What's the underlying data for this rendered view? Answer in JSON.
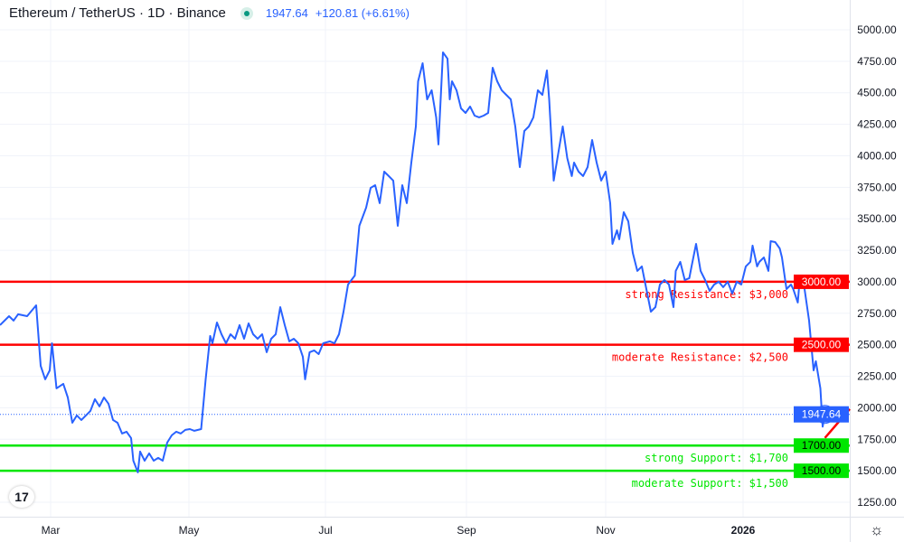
{
  "header": {
    "symbol": "Ethereum / TetherUS · 1D · Binance",
    "price": "1947.64",
    "change": "+120.81 (+6.61%)",
    "status_color": "#089981"
  },
  "logo": "TV",
  "chart_data": {
    "type": "line",
    "title": "Ethereum / TetherUS · 1D · Binance",
    "x_unit": "day index",
    "xlim": [
      0,
      376
    ],
    "ylim": [
      1125,
      5125
    ],
    "y_ticks": [
      1250,
      1500,
      1750,
      2000,
      2250,
      2500,
      2750,
      3000,
      3250,
      3500,
      3750,
      4000,
      4250,
      4500,
      4750,
      5000
    ],
    "y_tick_labels": [
      "1250.00",
      "1500.00",
      "1750.00",
      "2000.00",
      "2250.00",
      "2500.00",
      "2750.00",
      "3000.00",
      "3250.00",
      "3500.00",
      "3750.00",
      "4000.00",
      "4250.00",
      "4500.00",
      "4750.00",
      "5000.00"
    ],
    "x_ticks": [
      {
        "day": 22.4,
        "label": "Mar"
      },
      {
        "day": 83.6,
        "label": "May"
      },
      {
        "day": 144,
        "label": "Jul"
      },
      {
        "day": 206.4,
        "label": "Sep"
      },
      {
        "day": 268,
        "label": "Nov"
      },
      {
        "day": 328.8,
        "label": "2026",
        "bold": true
      }
    ],
    "grid": true,
    "series": [
      {
        "name": "ETHUSDT",
        "color": "#2962ff",
        "points": [
          [
            0,
            2656
          ],
          [
            4,
            2727
          ],
          [
            6,
            2692
          ],
          [
            8,
            2742
          ],
          [
            12,
            2727
          ],
          [
            16,
            2813
          ],
          [
            18,
            2333
          ],
          [
            20,
            2226
          ],
          [
            22,
            2297
          ],
          [
            23,
            2512
          ],
          [
            25,
            2154
          ],
          [
            28,
            2190
          ],
          [
            30,
            2082
          ],
          [
            32,
            1881
          ],
          [
            34,
            1939
          ],
          [
            36,
            1903
          ],
          [
            38,
            1939
          ],
          [
            40,
            1975
          ],
          [
            42,
            2068
          ],
          [
            44,
            2011
          ],
          [
            46,
            2082
          ],
          [
            48,
            2032
          ],
          [
            50,
            1903
          ],
          [
            52,
            1881
          ],
          [
            54,
            1796
          ],
          [
            56,
            1810
          ],
          [
            58,
            1760
          ],
          [
            59,
            1580
          ],
          [
            61,
            1487
          ],
          [
            62,
            1652
          ],
          [
            64,
            1580
          ],
          [
            66,
            1638
          ],
          [
            68,
            1580
          ],
          [
            70,
            1602
          ],
          [
            72,
            1580
          ],
          [
            74,
            1724
          ],
          [
            76,
            1781
          ],
          [
            78,
            1810
          ],
          [
            80,
            1796
          ],
          [
            82,
            1824
          ],
          [
            84,
            1831
          ],
          [
            86,
            1817
          ],
          [
            89,
            1831
          ],
          [
            91,
            2226
          ],
          [
            93,
            2570
          ],
          [
            94,
            2512
          ],
          [
            96,
            2677
          ],
          [
            98,
            2584
          ],
          [
            100,
            2512
          ],
          [
            102,
            2584
          ],
          [
            104,
            2548
          ],
          [
            106,
            2656
          ],
          [
            108,
            2548
          ],
          [
            110,
            2670
          ],
          [
            112,
            2584
          ],
          [
            114,
            2548
          ],
          [
            116,
            2584
          ],
          [
            118,
            2441
          ],
          [
            120,
            2548
          ],
          [
            122,
            2584
          ],
          [
            124,
            2799
          ],
          [
            126,
            2656
          ],
          [
            128,
            2527
          ],
          [
            130,
            2548
          ],
          [
            132,
            2512
          ],
          [
            134,
            2405
          ],
          [
            135,
            2226
          ],
          [
            137,
            2441
          ],
          [
            139,
            2455
          ],
          [
            141,
            2426
          ],
          [
            143,
            2512
          ],
          [
            146,
            2527
          ],
          [
            148,
            2512
          ],
          [
            150,
            2584
          ],
          [
            152,
            2763
          ],
          [
            154,
            2978
          ],
          [
            157,
            3050
          ],
          [
            159,
            3444
          ],
          [
            162,
            3588
          ],
          [
            164,
            3745
          ],
          [
            166,
            3767
          ],
          [
            168,
            3624
          ],
          [
            170,
            3874
          ],
          [
            172,
            3839
          ],
          [
            174,
            3803
          ],
          [
            176,
            3444
          ],
          [
            178,
            3767
          ],
          [
            180,
            3624
          ],
          [
            182,
            3946
          ],
          [
            184,
            4233
          ],
          [
            185,
            4591
          ],
          [
            187,
            4735
          ],
          [
            189,
            4448
          ],
          [
            191,
            4520
          ],
          [
            193,
            4305
          ],
          [
            194,
            4090
          ],
          [
            196,
            4821
          ],
          [
            198,
            4771
          ],
          [
            199,
            4448
          ],
          [
            200,
            4591
          ],
          [
            202,
            4520
          ],
          [
            204,
            4376
          ],
          [
            206,
            4340
          ],
          [
            208,
            4391
          ],
          [
            210,
            4319
          ],
          [
            212,
            4305
          ],
          [
            214,
            4319
          ],
          [
            216,
            4340
          ],
          [
            218,
            4699
          ],
          [
            220,
            4591
          ],
          [
            222,
            4520
          ],
          [
            224,
            4484
          ],
          [
            226,
            4448
          ],
          [
            228,
            4233
          ],
          [
            230,
            3910
          ],
          [
            232,
            4197
          ],
          [
            234,
            4233
          ],
          [
            236,
            4305
          ],
          [
            238,
            4520
          ],
          [
            240,
            4484
          ],
          [
            242,
            4677
          ],
          [
            243,
            4448
          ],
          [
            245,
            3803
          ],
          [
            247,
            4018
          ],
          [
            249,
            4233
          ],
          [
            251,
            3982
          ],
          [
            253,
            3839
          ],
          [
            254,
            3946
          ],
          [
            256,
            3874
          ],
          [
            258,
            3839
          ],
          [
            260,
            3910
          ],
          [
            262,
            4125
          ],
          [
            264,
            3946
          ],
          [
            266,
            3803
          ],
          [
            268,
            3874
          ],
          [
            270,
            3624
          ],
          [
            271,
            3301
          ],
          [
            273,
            3409
          ],
          [
            274,
            3337
          ],
          [
            276,
            3552
          ],
          [
            278,
            3480
          ],
          [
            280,
            3229
          ],
          [
            282,
            3086
          ],
          [
            284,
            3122
          ],
          [
            286,
            2942
          ],
          [
            288,
            2763
          ],
          [
            290,
            2799
          ],
          [
            292,
            2978
          ],
          [
            294,
            3014
          ],
          [
            296,
            2978
          ],
          [
            298,
            2799
          ],
          [
            299,
            3086
          ],
          [
            301,
            3158
          ],
          [
            303,
            3014
          ],
          [
            305,
            3029
          ],
          [
            306,
            3122
          ],
          [
            308,
            3301
          ],
          [
            310,
            3086
          ],
          [
            312,
            3014
          ],
          [
            314,
            2928
          ],
          [
            316,
            2978
          ],
          [
            318,
            3000
          ],
          [
            320,
            2957
          ],
          [
            322,
            3000
          ],
          [
            324,
            2907
          ],
          [
            326,
            3000
          ],
          [
            328,
            2978
          ],
          [
            330,
            3122
          ],
          [
            332,
            3158
          ],
          [
            333,
            3287
          ],
          [
            335,
            3122
          ],
          [
            336,
            3158
          ],
          [
            338,
            3193
          ],
          [
            340,
            3086
          ],
          [
            341,
            3322
          ],
          [
            343,
            3315
          ],
          [
            345,
            3265
          ],
          [
            346,
            3193
          ],
          [
            348,
            2942
          ],
          [
            350,
            2978
          ],
          [
            351,
            2942
          ],
          [
            353,
            2835
          ],
          [
            354,
            3050
          ],
          [
            356,
            2942
          ],
          [
            358,
            2692
          ],
          [
            360,
            2297
          ],
          [
            361,
            2369
          ],
          [
            363,
            2154
          ],
          [
            364,
            1850
          ],
          [
            365,
            1947.64
          ]
        ]
      }
    ],
    "last_price": {
      "value": 1947.64,
      "label": "1947.64",
      "color": "#2962ff"
    },
    "levels": [
      {
        "value": 3000,
        "label": "3000.00",
        "annotation": "strong Resistance: $3,000",
        "color": "#ff0000"
      },
      {
        "value": 2500,
        "label": "2500.00",
        "annotation": "moderate Resistance: $2,500",
        "color": "#ff0000"
      },
      {
        "value": 1700,
        "label": "1700.00",
        "annotation": "strong Support: $1,700",
        "color": "#00e600"
      },
      {
        "value": 1500,
        "label": "1500.00",
        "annotation": "moderate Support: $1,500",
        "color": "#00e600"
      }
    ],
    "trend_arrow": {
      "from": [
        365,
        1760
      ],
      "to": [
        376,
        1990
      ],
      "color": "#ff0000"
    }
  }
}
